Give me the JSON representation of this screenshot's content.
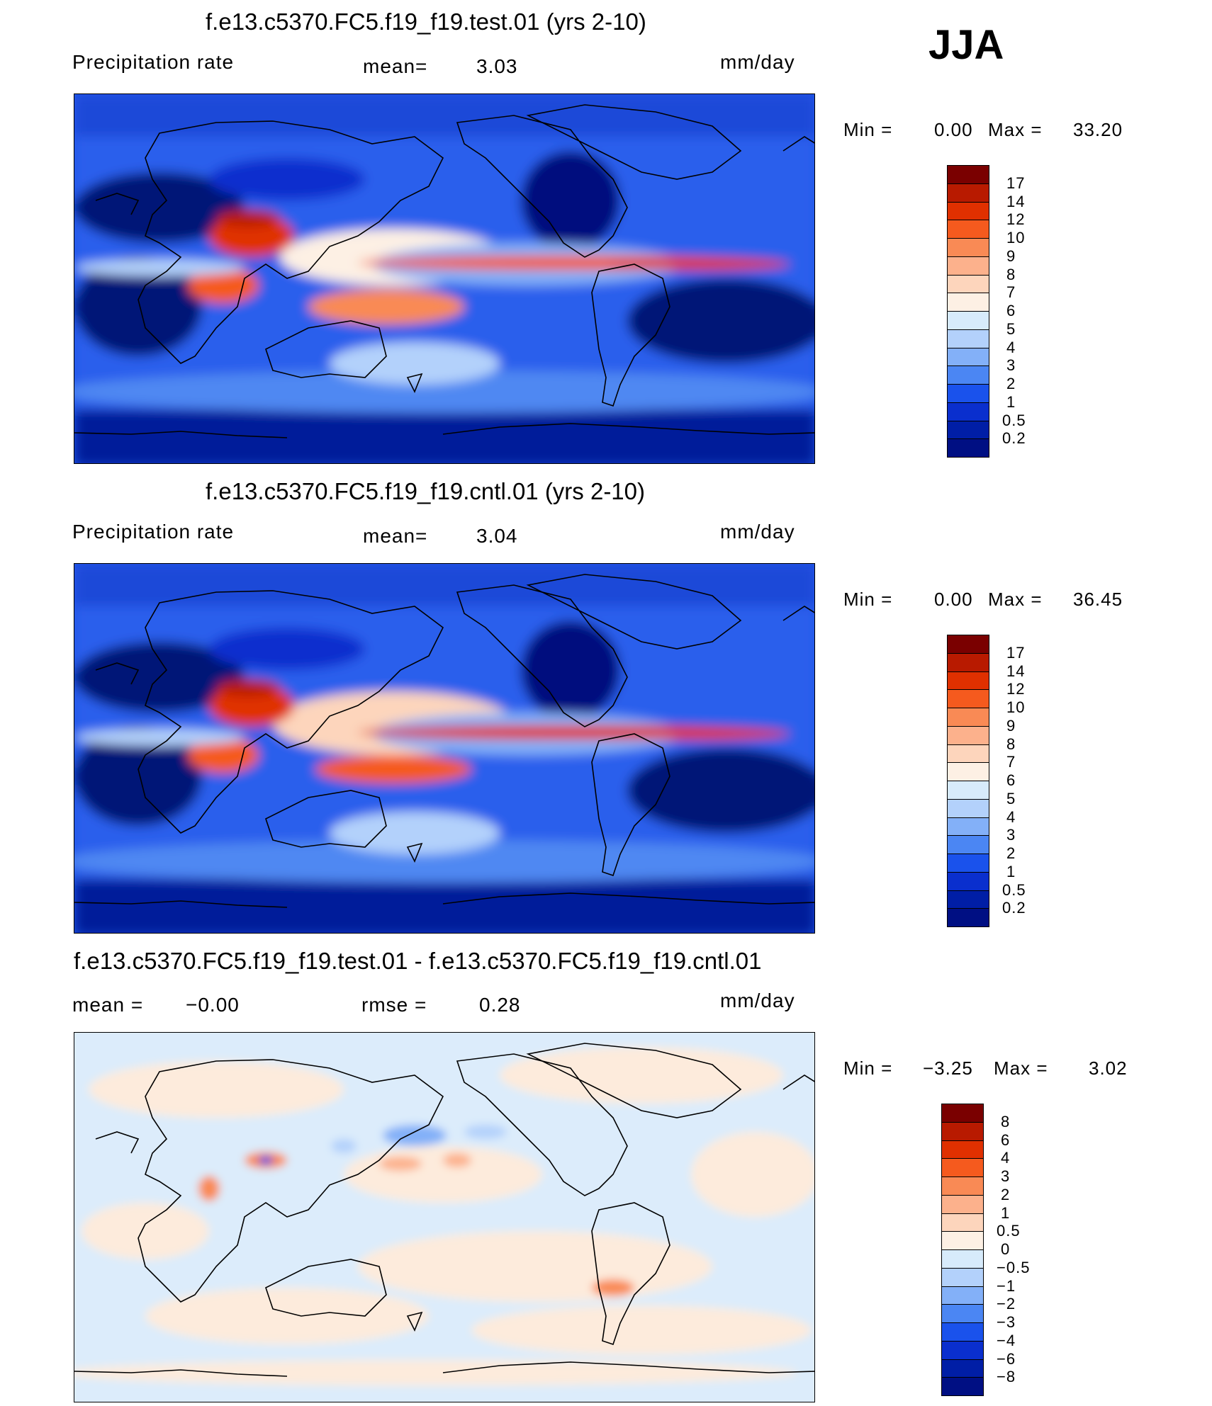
{
  "season": "JJA",
  "panels": [
    {
      "title": "f.e13.c5370.FC5.f19_f19.test.01 (yrs 2-10)",
      "left_label": "Precipitation rate",
      "mid_label": "mean=",
      "mid_value": "3.03",
      "units": "mm/day",
      "min_label": "Min =",
      "min_value": "0.00",
      "max_label": "Max =",
      "max_value": "33.20",
      "colorbar": {
        "levels": [
          "17",
          "14",
          "12",
          "10",
          "9",
          "8",
          "7",
          "6",
          "5",
          "4",
          "3",
          "2",
          "1",
          "0.5",
          "0.2"
        ],
        "colors": [
          "#7a0000",
          "#b81a00",
          "#e03000",
          "#f55a1e",
          "#f98a55",
          "#fcb18c",
          "#fdd5bc",
          "#fdf0e4",
          "#d7ebfb",
          "#b3d1fb",
          "#83b0f8",
          "#4b86f3",
          "#1a52ec",
          "#0a2fce",
          "#001ea6",
          "#000f83"
        ]
      }
    },
    {
      "title": "f.e13.c5370.FC5.f19_f19.cntl.01 (yrs 2-10)",
      "left_label": "Precipitation rate",
      "mid_label": "mean=",
      "mid_value": "3.04",
      "units": "mm/day",
      "min_label": "Min =",
      "min_value": "0.00",
      "max_label": "Max =",
      "max_value": "36.45",
      "colorbar": {
        "levels": [
          "17",
          "14",
          "12",
          "10",
          "9",
          "8",
          "7",
          "6",
          "5",
          "4",
          "3",
          "2",
          "1",
          "0.5",
          "0.2"
        ],
        "colors": [
          "#7a0000",
          "#b81a00",
          "#e03000",
          "#f55a1e",
          "#f98a55",
          "#fcb18c",
          "#fdd5bc",
          "#fdf0e4",
          "#d7ebfb",
          "#b3d1fb",
          "#83b0f8",
          "#4b86f3",
          "#1a52ec",
          "#0a2fce",
          "#001ea6",
          "#000f83"
        ]
      }
    },
    {
      "title": "f.e13.c5370.FC5.f19_f19.test.01 - f.e13.c5370.FC5.f19_f19.cntl.01",
      "left_label": "mean =",
      "left_value": "−0.00",
      "mid_label": "rmse =",
      "mid_value": "0.28",
      "units": "mm/day",
      "min_label": "Min =",
      "min_value": "−3.25",
      "max_label": "Max =",
      "max_value": "3.02",
      "colorbar": {
        "levels": [
          "8",
          "6",
          "4",
          "3",
          "2",
          "1",
          "0.5",
          "0",
          "−0.5",
          "−1",
          "−2",
          "−3",
          "−4",
          "−6",
          "−8"
        ],
        "colors": [
          "#7a0000",
          "#b81a00",
          "#e03000",
          "#f55a1e",
          "#f98a55",
          "#fcb18c",
          "#fdd5bc",
          "#fdf0e4",
          "#d7ebfb",
          "#b3d1fb",
          "#83b0f8",
          "#4b86f3",
          "#1a52ec",
          "#0a2fce",
          "#001ea6",
          "#000f83"
        ]
      }
    }
  ]
}
